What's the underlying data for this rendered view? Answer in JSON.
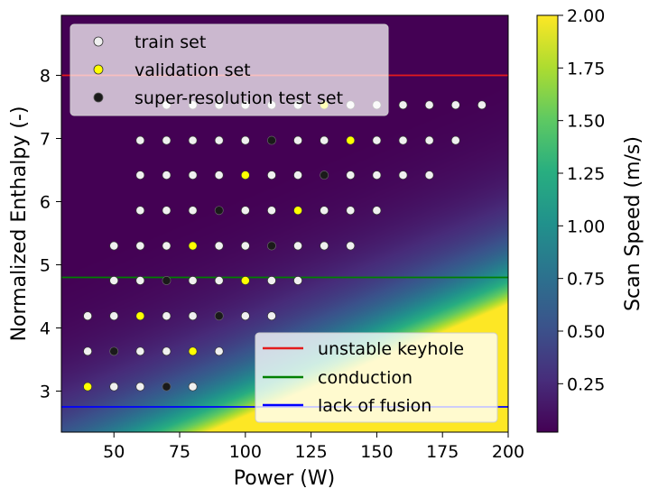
{
  "chart_data": {
    "type": "scatter",
    "xlabel": "Power (W)",
    "ylabel": "Normalized Enthalpy (-)",
    "xlim": [
      30,
      200
    ],
    "ylim": [
      2.35,
      8.95
    ],
    "xticks": [
      50,
      75,
      100,
      125,
      150,
      175,
      200
    ],
    "yticks": [
      3,
      4,
      5,
      6,
      7,
      8
    ],
    "background": {
      "type": "heatmap",
      "colormap": "viridis",
      "description": "Scan speed field increasing toward high power / low enthalpy"
    },
    "colorbar": {
      "label": "Scan Speed (m/s)",
      "range": [
        0.02,
        2.0
      ],
      "ticks": [
        "0.25",
        "0.50",
        "0.75",
        "1.00",
        "1.25",
        "1.50",
        "1.75",
        "2.00"
      ],
      "tick_values": [
        0.25,
        0.5,
        0.75,
        1.0,
        1.25,
        1.5,
        1.75,
        2.0
      ]
    },
    "hlines": [
      {
        "name": "unstable keyhole",
        "y": 8.0,
        "color": "#e41a1c"
      },
      {
        "name": "conduction",
        "y": 4.8,
        "color": "#008000"
      },
      {
        "name": "lack of fusion",
        "y": 2.75,
        "color": "#0000ff"
      }
    ],
    "series": [
      {
        "name": "train set",
        "color": "#f0f0f0",
        "points": [
          [
            70,
            7.53
          ],
          [
            80,
            7.53
          ],
          [
            90,
            7.53
          ],
          [
            100,
            7.53
          ],
          [
            110,
            7.53
          ],
          [
            120,
            7.53
          ],
          [
            140,
            7.53
          ],
          [
            150,
            7.53
          ],
          [
            160,
            7.53
          ],
          [
            170,
            7.53
          ],
          [
            180,
            7.53
          ],
          [
            190,
            7.53
          ],
          [
            60,
            6.97
          ],
          [
            70,
            6.97
          ],
          [
            80,
            6.97
          ],
          [
            90,
            6.97
          ],
          [
            100,
            6.97
          ],
          [
            120,
            6.97
          ],
          [
            130,
            6.97
          ],
          [
            150,
            6.97
          ],
          [
            160,
            6.97
          ],
          [
            170,
            6.97
          ],
          [
            180,
            6.97
          ],
          [
            60,
            6.42
          ],
          [
            70,
            6.42
          ],
          [
            80,
            6.42
          ],
          [
            90,
            6.42
          ],
          [
            110,
            6.42
          ],
          [
            120,
            6.42
          ],
          [
            140,
            6.42
          ],
          [
            150,
            6.42
          ],
          [
            160,
            6.42
          ],
          [
            170,
            6.42
          ],
          [
            60,
            5.86
          ],
          [
            70,
            5.86
          ],
          [
            80,
            5.86
          ],
          [
            100,
            5.86
          ],
          [
            110,
            5.86
          ],
          [
            130,
            5.86
          ],
          [
            140,
            5.86
          ],
          [
            150,
            5.86
          ],
          [
            50,
            5.3
          ],
          [
            60,
            5.3
          ],
          [
            70,
            5.3
          ],
          [
            90,
            5.3
          ],
          [
            100,
            5.3
          ],
          [
            120,
            5.3
          ],
          [
            130,
            5.3
          ],
          [
            140,
            5.3
          ],
          [
            50,
            4.75
          ],
          [
            60,
            4.75
          ],
          [
            80,
            4.75
          ],
          [
            90,
            4.75
          ],
          [
            110,
            4.75
          ],
          [
            120,
            4.75
          ],
          [
            40,
            4.19
          ],
          [
            50,
            4.19
          ],
          [
            70,
            4.19
          ],
          [
            80,
            4.19
          ],
          [
            100,
            4.19
          ],
          [
            110,
            4.19
          ],
          [
            40,
            3.63
          ],
          [
            60,
            3.63
          ],
          [
            70,
            3.63
          ],
          [
            90,
            3.63
          ],
          [
            50,
            3.07
          ],
          [
            60,
            3.07
          ],
          [
            80,
            3.07
          ]
        ]
      },
      {
        "name": "validation set",
        "color": "#ffff00",
        "points": [
          [
            130,
            7.53
          ],
          [
            140,
            6.97
          ],
          [
            100,
            6.42
          ],
          [
            120,
            5.86
          ],
          [
            80,
            5.3
          ],
          [
            100,
            4.75
          ],
          [
            60,
            4.19
          ],
          [
            80,
            3.63
          ],
          [
            40,
            3.07
          ]
        ]
      },
      {
        "name": "super-resolution test set",
        "color": "#1a1a1a",
        "points": [
          [
            110,
            6.97
          ],
          [
            130,
            6.42
          ],
          [
            90,
            5.86
          ],
          [
            110,
            5.3
          ],
          [
            70,
            4.75
          ],
          [
            90,
            4.19
          ],
          [
            50,
            3.63
          ],
          [
            70,
            3.07
          ]
        ]
      }
    ],
    "legend_points": {
      "placement": "top-left",
      "entries": [
        "train set",
        "validation set",
        "super-resolution test set"
      ]
    },
    "legend_lines": {
      "placement": "bottom-right",
      "entries": [
        "unstable keyhole",
        "conduction",
        "lack of fusion"
      ]
    }
  }
}
